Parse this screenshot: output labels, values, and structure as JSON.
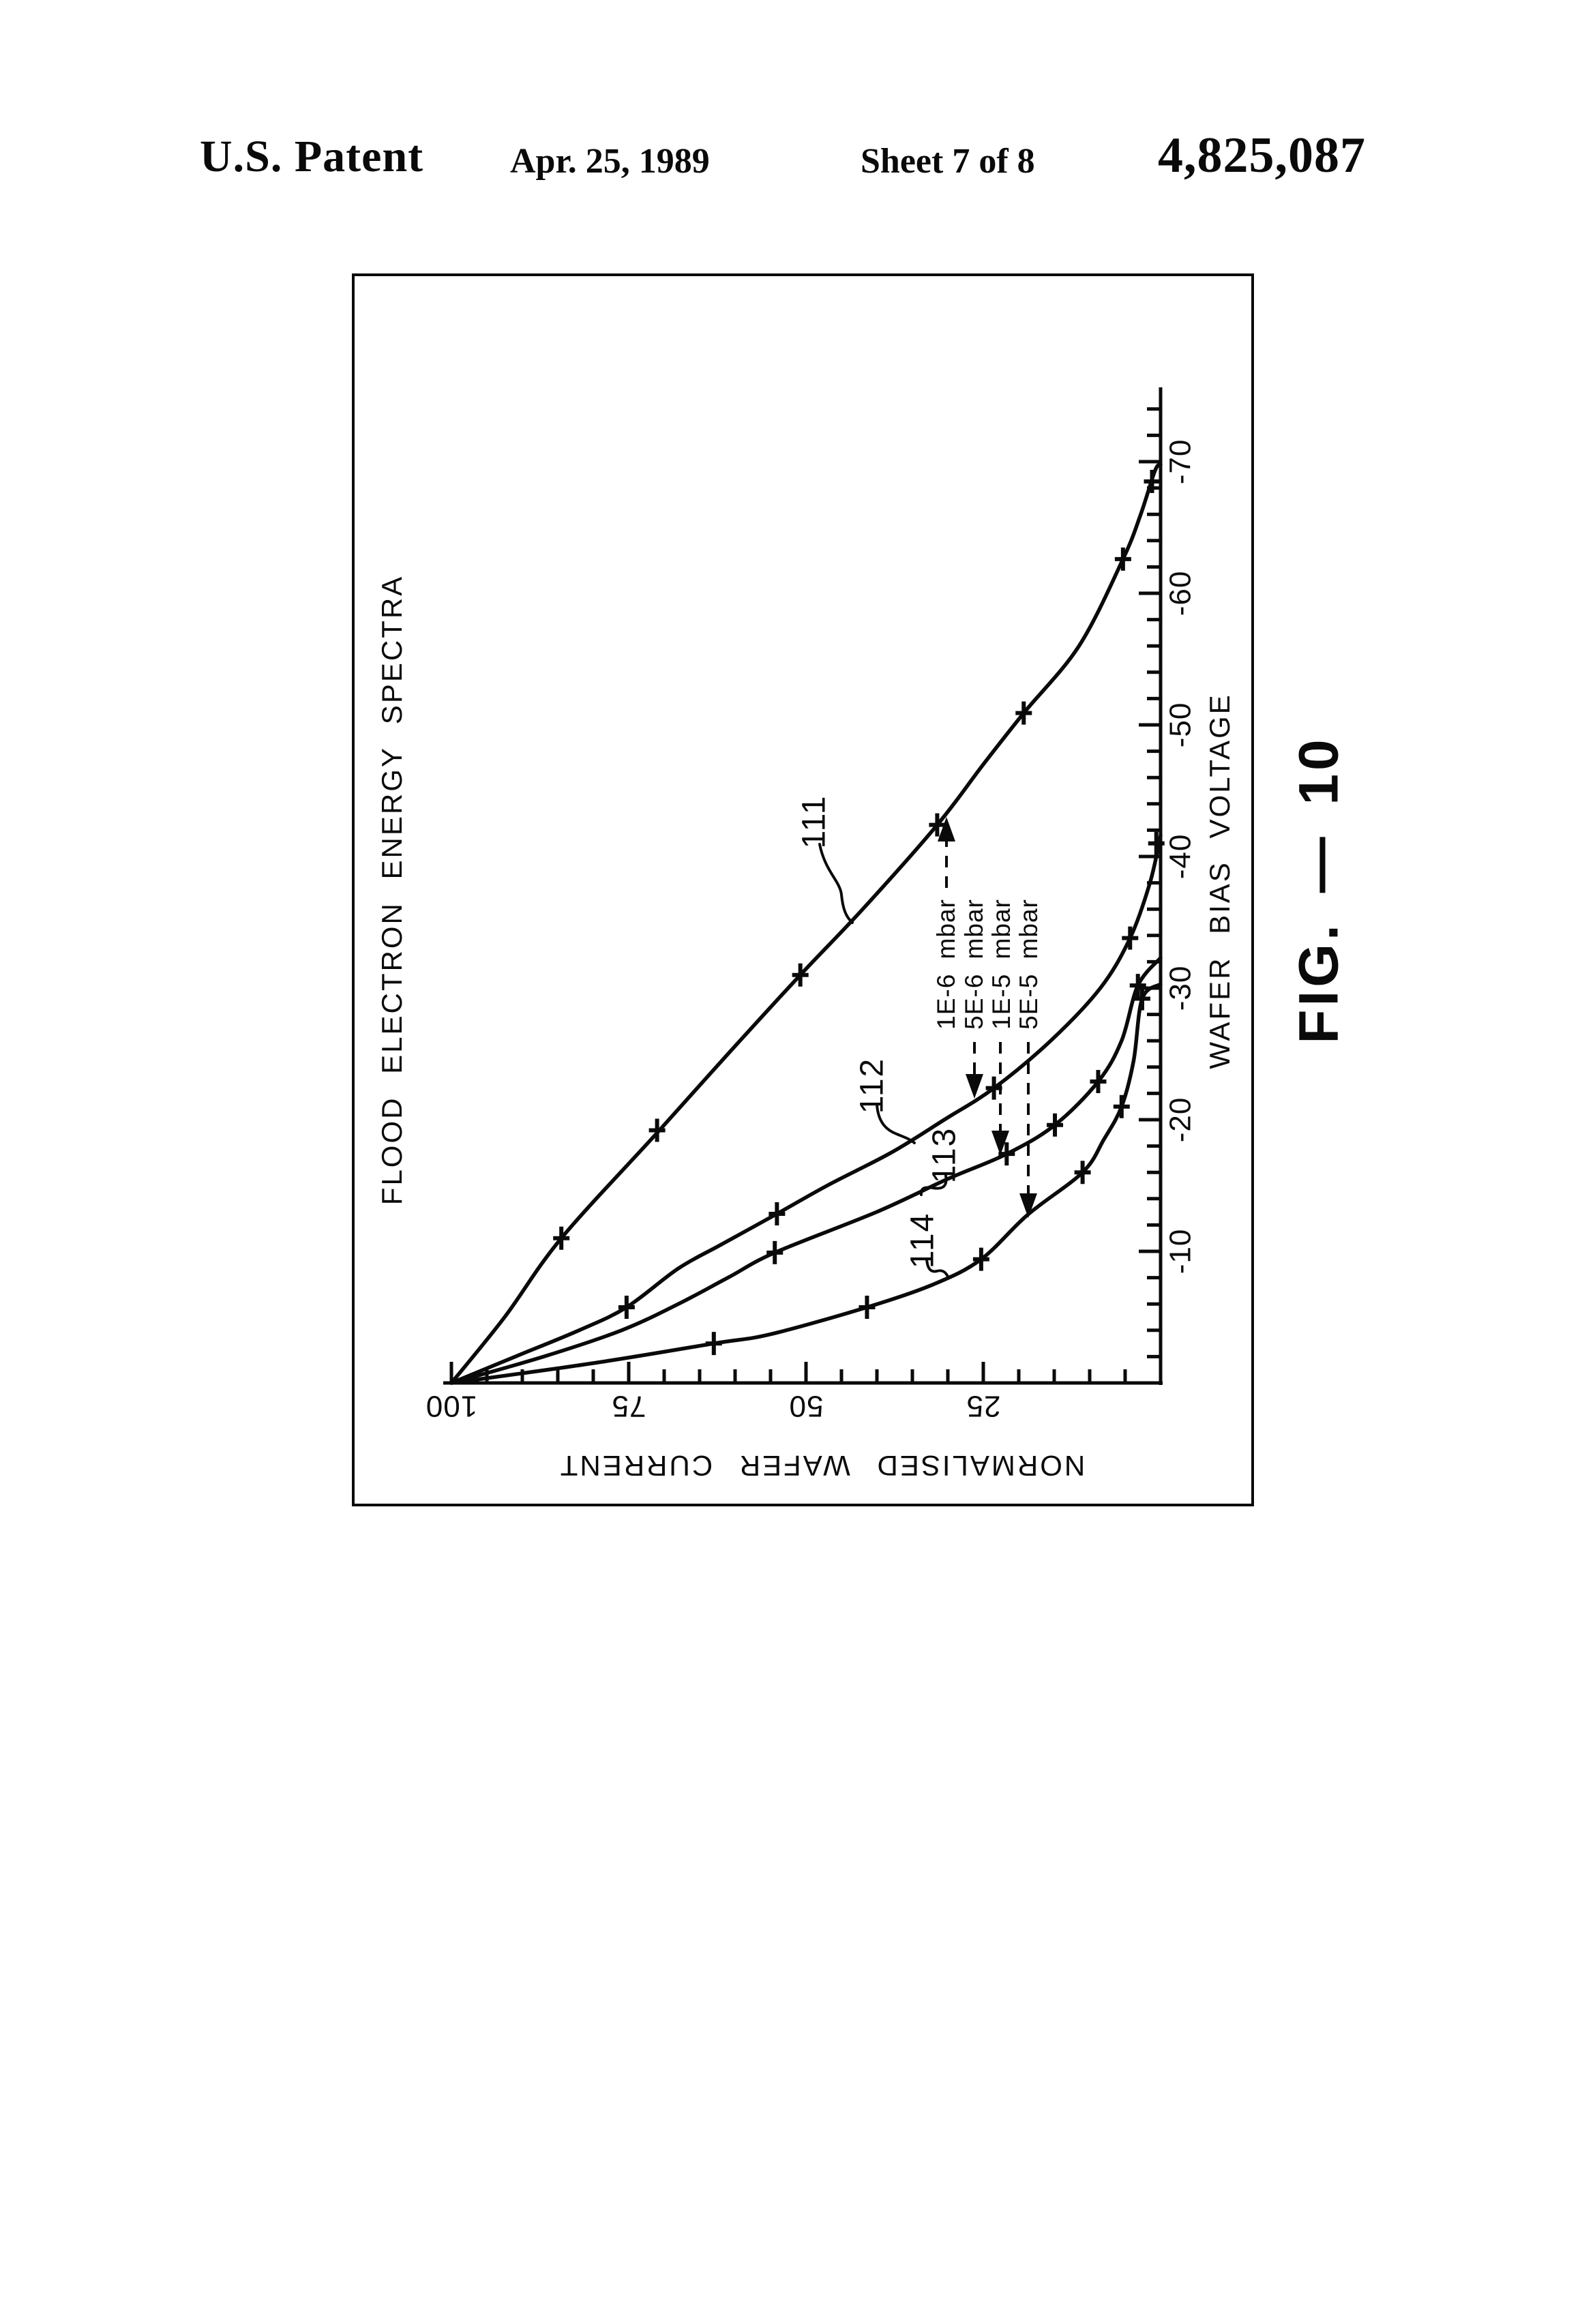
{
  "header": {
    "title": "U.S. Patent",
    "date": "Apr. 25, 1989",
    "sheet": "Sheet 7 of 8",
    "patent_number": "4,825,087"
  },
  "figure": {
    "label": "FIG. — 10"
  },
  "chart_data": {
    "type": "line",
    "title": "FLOOD ELECTRON ENERGY SPECTRA",
    "xlabel": "WAFER BIAS VOLTAGE",
    "ylabel": "NORMALISED WAFER CURRENT",
    "orientation": "entire chart rotated 90 degrees counter-clockwise on the page",
    "xlim": [
      0,
      -75.5
    ],
    "ylim": [
      0,
      100
    ],
    "x_major_ticks": [
      -10,
      -20,
      -30,
      -40,
      -50,
      -60,
      -70
    ],
    "x_minor_step": 2,
    "y_major_ticks": [
      100,
      75,
      50,
      25
    ],
    "y_minor_step": 5,
    "grid": false,
    "series": [
      {
        "name": "111",
        "pressure": "1E-6 mbar",
        "points": [
          [
            0,
            100
          ],
          [
            -5,
            92.5
          ],
          [
            -11,
            84.5
          ],
          [
            -19,
            71
          ],
          [
            -25,
            61
          ],
          [
            -31,
            50.8
          ],
          [
            -36,
            42
          ],
          [
            -42.4,
            31.5
          ],
          [
            -47,
            25
          ],
          [
            -50.9,
            19.3
          ],
          [
            -56,
            11.5
          ],
          [
            -62.6,
            5.3
          ],
          [
            -66,
            2.8
          ],
          [
            -69.3,
            0.8
          ],
          [
            -69.8,
            0
          ]
        ],
        "markers": [
          [
            -11,
            84.5
          ],
          [
            -19.2,
            71
          ],
          [
            -31,
            50.8
          ],
          [
            -42.4,
            31.5
          ],
          [
            -50.9,
            19.3
          ],
          [
            -62.6,
            5.3
          ],
          [
            -68.5,
            1.2
          ]
        ]
      },
      {
        "name": "112",
        "pressure": "5E-6 mbar",
        "points": [
          [
            0,
            100
          ],
          [
            -2,
            91
          ],
          [
            -4,
            82
          ],
          [
            -5.75,
            75.3
          ],
          [
            -8.7,
            68
          ],
          [
            -10.5,
            62
          ],
          [
            -12.85,
            54.1
          ],
          [
            -15,
            47
          ],
          [
            -17.5,
            38
          ],
          [
            -20,
            30.5
          ],
          [
            -22.4,
            23.5
          ],
          [
            -26,
            15.5
          ],
          [
            -30,
            8.5
          ],
          [
            -33.8,
            4.3
          ],
          [
            -38,
            1.5
          ],
          [
            -41.6,
            0
          ]
        ],
        "markers": [
          [
            -5.75,
            75.3
          ],
          [
            -12.85,
            54.1
          ],
          [
            -22.4,
            23.5
          ],
          [
            -33.8,
            4.3
          ],
          [
            -41,
            0.6
          ]
        ]
      },
      {
        "name": "113",
        "pressure": "1E-5 mbar",
        "points": [
          [
            0,
            100
          ],
          [
            -2,
            87
          ],
          [
            -4,
            76
          ],
          [
            -6,
            68
          ],
          [
            -8,
            61
          ],
          [
            -9.9,
            54.4
          ],
          [
            -13,
            40
          ],
          [
            -15.5,
            30
          ],
          [
            -17.4,
            21.7
          ],
          [
            -19.6,
            14.9
          ],
          [
            -22.9,
            8.8
          ],
          [
            -26,
            5.5
          ],
          [
            -30.2,
            3.2
          ],
          [
            -32.3,
            0
          ]
        ],
        "markers": [
          [
            -9.9,
            54.4
          ],
          [
            -17.4,
            21.7
          ],
          [
            -19.6,
            14.9
          ],
          [
            -22.9,
            8.8
          ],
          [
            -30.2,
            3.2
          ]
        ]
      },
      {
        "name": "114",
        "pressure": "5E-5 mbar",
        "points": [
          [
            0,
            100
          ],
          [
            -1.5,
            80
          ],
          [
            -3,
            63
          ],
          [
            -3.7,
            55
          ],
          [
            -5.75,
            41.4
          ],
          [
            -7.5,
            32
          ],
          [
            -9.4,
            25.3
          ],
          [
            -12.8,
            18.7
          ],
          [
            -16,
            11
          ],
          [
            -18.5,
            8
          ],
          [
            -21,
            5.5
          ],
          [
            -24.5,
            3.8
          ],
          [
            -29.2,
            2.6
          ],
          [
            -30.3,
            0
          ]
        ],
        "markers": [
          [
            -3,
            63
          ],
          [
            -5.75,
            41.4
          ],
          [
            -9.4,
            25.3
          ],
          [
            -16,
            11
          ],
          [
            -21,
            5.5
          ],
          [
            -29.2,
            2.6
          ]
        ]
      }
    ],
    "annotations": [
      {
        "label": "1E-6 mbar",
        "series": "111",
        "arrow": "up"
      },
      {
        "label": "5E-6 mbar",
        "series": "112",
        "arrow": "down"
      },
      {
        "label": "1E-5 mbar",
        "series": "113",
        "arrow": "down"
      },
      {
        "label": "5E-5 mbar",
        "series": "114",
        "arrow": "down"
      }
    ]
  }
}
